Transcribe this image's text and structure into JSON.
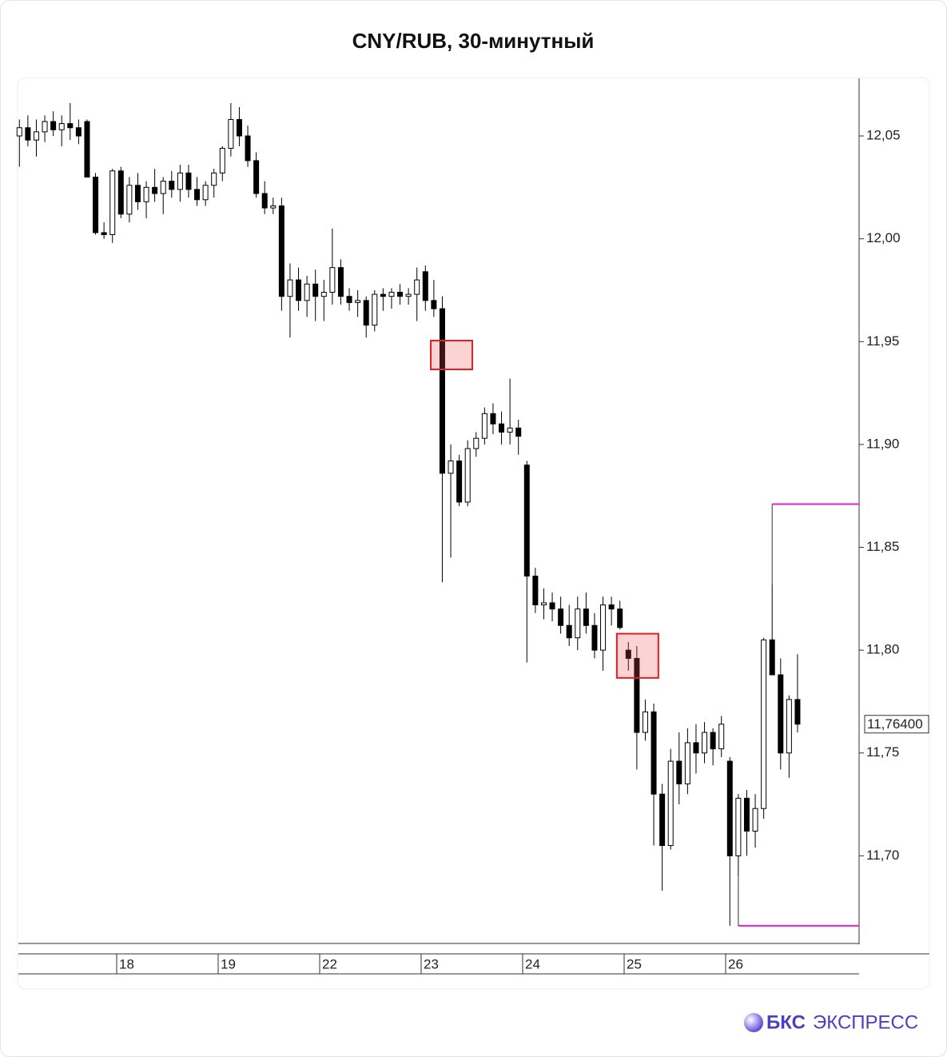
{
  "chart_data": {
    "type": "candlestick",
    "title": "CNY/RUB, 30-минутный",
    "categories": [
      null,
      null,
      null,
      null,
      null,
      null,
      null,
      null,
      null,
      null,
      null,
      null,
      "18",
      null,
      null,
      null,
      null,
      null,
      null,
      null,
      null,
      null,
      null,
      null,
      "19",
      null,
      null,
      null,
      null,
      null,
      null,
      null,
      null,
      null,
      null,
      null,
      "22",
      null,
      null,
      null,
      null,
      null,
      null,
      null,
      null,
      null,
      null,
      null,
      "23",
      null,
      null,
      null,
      null,
      null,
      null,
      null,
      null,
      null,
      null,
      null,
      "24",
      null,
      null,
      null,
      null,
      null,
      null,
      null,
      null,
      null,
      null,
      null,
      "25",
      null,
      null,
      null,
      null,
      null,
      null,
      null,
      null,
      null,
      null,
      null,
      "26",
      null,
      null,
      null,
      null,
      null,
      null,
      null,
      null
    ],
    "open": [
      12.05,
      12.054,
      12.048,
      12.052,
      12.057,
      12.053,
      12.056,
      12.054,
      12.057,
      12.03,
      12.003,
      12.002,
      12.033,
      12.012,
      12.026,
      12.018,
      12.025,
      12.022,
      12.028,
      12.024,
      12.032,
      12.024,
      12.019,
      12.026,
      12.032,
      12.044,
      12.058,
      12.05,
      12.038,
      12.022,
      12.015,
      12.016,
      11.972,
      11.98,
      11.97,
      11.978,
      11.972,
      11.974,
      11.986,
      11.972,
      11.969,
      11.97,
      11.958,
      11.973,
      11.972,
      11.974,
      11.972,
      11.973,
      11.984,
      11.97,
      11.966,
      11.886,
      11.892,
      11.872,
      11.898,
      11.903,
      11.915,
      11.91,
      11.906,
      11.908,
      11.89,
      11.836,
      11.822,
      11.823,
      11.82,
      11.812,
      11.806,
      11.82,
      11.812,
      11.8,
      11.822,
      11.82,
      11.8,
      11.796,
      11.76,
      11.77,
      11.73,
      11.705,
      11.746,
      11.735,
      11.755,
      11.75,
      11.76,
      11.752,
      11.746,
      11.7,
      11.728,
      11.712,
      11.723,
      11.805,
      11.788,
      11.75,
      11.776
    ],
    "high": [
      12.058,
      12.06,
      12.058,
      12.06,
      12.062,
      12.06,
      12.066,
      12.058,
      12.058,
      12.032,
      12.008,
      12.034,
      12.035,
      12.03,
      12.032,
      12.028,
      12.034,
      12.03,
      12.033,
      12.036,
      12.036,
      12.03,
      12.028,
      12.034,
      12.045,
      12.066,
      12.064,
      12.055,
      12.042,
      12.028,
      12.02,
      12.02,
      11.988,
      11.986,
      11.982,
      11.985,
      11.98,
      12.005,
      11.99,
      11.976,
      11.975,
      11.972,
      11.975,
      11.976,
      11.976,
      11.978,
      11.976,
      11.986,
      11.987,
      11.98,
      11.972,
      11.9,
      11.895,
      11.902,
      11.906,
      11.918,
      11.92,
      11.916,
      11.932,
      11.912,
      11.892,
      11.84,
      11.83,
      11.828,
      11.826,
      11.822,
      11.826,
      11.828,
      11.818,
      11.826,
      11.826,
      11.824,
      11.804,
      11.802,
      11.776,
      11.774,
      11.735,
      11.752,
      11.76,
      11.762,
      11.764,
      11.765,
      11.762,
      11.768,
      11.748,
      11.73,
      11.732,
      11.73,
      11.806,
      11.832,
      11.796,
      11.778,
      11.798
    ],
    "low": [
      12.035,
      12.045,
      12.04,
      12.047,
      12.05,
      12.045,
      12.048,
      12.046,
      12.03,
      12.002,
      12.0,
      11.998,
      12.01,
      12.008,
      12.014,
      12.01,
      12.018,
      12.012,
      12.02,
      12.018,
      12.02,
      12.016,
      12.016,
      12.02,
      12.028,
      12.04,
      12.045,
      12.035,
      12.02,
      12.012,
      12.012,
      11.965,
      11.952,
      11.965,
      11.962,
      11.96,
      11.96,
      11.968,
      11.968,
      11.965,
      11.962,
      11.952,
      11.955,
      11.965,
      11.966,
      11.968,
      11.968,
      11.96,
      11.965,
      11.962,
      11.833,
      11.845,
      11.87,
      11.87,
      11.894,
      11.9,
      11.905,
      11.9,
      11.9,
      11.895,
      11.794,
      11.818,
      11.815,
      11.814,
      11.808,
      11.802,
      11.8,
      11.808,
      11.796,
      11.79,
      11.812,
      11.81,
      11.79,
      11.742,
      11.756,
      11.705,
      11.683,
      11.703,
      11.725,
      11.73,
      11.74,
      11.745,
      11.744,
      11.748,
      11.666,
      11.69,
      11.7,
      11.704,
      11.718,
      11.788,
      11.742,
      11.738,
      11.76
    ],
    "close": [
      12.054,
      12.048,
      12.052,
      12.057,
      12.053,
      12.056,
      12.054,
      12.05,
      12.03,
      12.003,
      12.002,
      12.033,
      12.012,
      12.026,
      12.018,
      12.025,
      12.022,
      12.028,
      12.024,
      12.032,
      12.024,
      12.019,
      12.026,
      12.032,
      12.044,
      12.058,
      12.05,
      12.038,
      12.022,
      12.015,
      12.016,
      11.972,
      11.98,
      11.97,
      11.978,
      11.972,
      11.974,
      11.986,
      11.972,
      11.969,
      11.97,
      11.958,
      11.973,
      11.972,
      11.974,
      11.972,
      11.973,
      11.98,
      11.97,
      11.966,
      11.886,
      11.892,
      11.872,
      11.898,
      11.903,
      11.915,
      11.91,
      11.906,
      11.908,
      11.904,
      11.836,
      11.822,
      11.823,
      11.82,
      11.812,
      11.806,
      11.82,
      11.812,
      11.8,
      11.822,
      11.82,
      11.811,
      11.796,
      11.76,
      11.77,
      11.73,
      11.705,
      11.746,
      11.735,
      11.755,
      11.75,
      11.76,
      11.752,
      11.764,
      11.7,
      11.728,
      11.712,
      11.723,
      11.805,
      11.788,
      11.75,
      11.776,
      11.764
    ],
    "ylim": [
      11.657,
      12.078
    ],
    "yticks": [
      {
        "value": 11.7,
        "label": "11,70"
      },
      {
        "value": 11.75,
        "label": "11,75"
      },
      {
        "value": 11.8,
        "label": "11,80"
      },
      {
        "value": 11.85,
        "label": "11,85"
      },
      {
        "value": 11.9,
        "label": "11,90"
      },
      {
        "value": 11.95,
        "label": "11,95"
      },
      {
        "value": 12.0,
        "label": "12,00"
      },
      {
        "value": 12.05,
        "label": "12,05"
      }
    ],
    "last_price": {
      "value": 11.764,
      "label": "11,76400"
    },
    "levels": [
      {
        "value": 11.944,
        "width": 3
      },
      {
        "value": 11.801,
        "width": 4
      },
      {
        "value": 11.793,
        "width": 2
      }
    ],
    "boxes": [
      {
        "candle": 51,
        "low": 11.9365,
        "high": 11.9505
      },
      {
        "candle": 73,
        "low": 11.7865,
        "high": 11.808
      }
    ],
    "brackets": [
      {
        "value": 11.871,
        "from_candle": 89
      },
      {
        "value": 11.666,
        "from_candle": 85
      }
    ],
    "up_color": "#ffffff",
    "down_color": "#000000",
    "level_colors": [
      "#7b22d8",
      "#e020e0"
    ]
  },
  "footer": {
    "brand": "БКС",
    "product": "ЭКСПРЕСС"
  }
}
